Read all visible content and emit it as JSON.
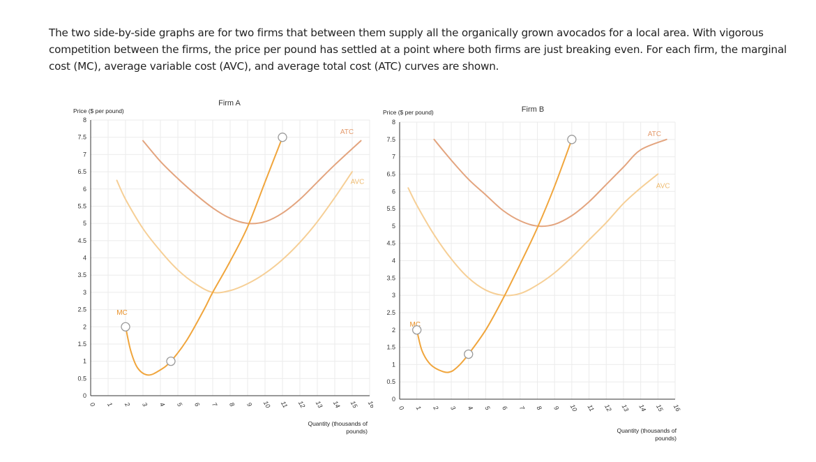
{
  "intro_text": "The two side-by-side graphs are for two firms that between them supply all the organically grown avocados for a local area. With vigorous competition between the firms, the price per pound has settled at a point where both firms are just breaking even. For each firm, the marginal cost (MC), average variable cost (AVC), and average total cost (ATC) curves are shown.",
  "colors": {
    "atc": "#e3a47e",
    "avc": "#f6cf96",
    "mc": "#f0a53c",
    "atc_label": "#e49a6c",
    "avc_label": "#eebb70",
    "mc_label": "#e88f25"
  },
  "chart_data": [
    {
      "type": "line",
      "title": "Firm A",
      "ylabel": "Price ($ per pound)",
      "xlabel": "Quantity (thousands of pounds)",
      "xlim": [
        0,
        16
      ],
      "ylim": [
        0,
        8
      ],
      "x_ticks": [
        "0",
        "1",
        "2",
        "3",
        "4",
        "5",
        "6",
        "7",
        "8",
        "9",
        "10",
        "11",
        "12",
        "13",
        "14",
        "15",
        "16"
      ],
      "y_ticks": [
        "0",
        "0.5",
        "1",
        "1.5",
        "2",
        "2.5",
        "3",
        "3.5",
        "4",
        "4.5",
        "5",
        "5.5",
        "6",
        "6.5",
        "7",
        "7.5",
        "8"
      ],
      "series": [
        {
          "name": "ATC",
          "x": [
            3,
            4,
            5,
            6,
            7,
            8,
            9,
            10,
            11,
            12,
            13,
            14,
            15.5
          ],
          "y": [
            7.4,
            6.8,
            6.3,
            5.85,
            5.45,
            5.15,
            5.0,
            5.05,
            5.3,
            5.7,
            6.2,
            6.7,
            7.4
          ]
        },
        {
          "name": "AVC",
          "x": [
            1.5,
            2,
            3,
            4,
            5,
            6,
            7,
            8,
            9,
            10,
            11,
            12,
            13,
            14,
            15
          ],
          "y": [
            6.25,
            5.7,
            4.85,
            4.2,
            3.65,
            3.25,
            3.0,
            3.05,
            3.25,
            3.55,
            3.95,
            4.45,
            5.05,
            5.75,
            6.5
          ]
        },
        {
          "name": "MC",
          "x": [
            2,
            2.3,
            2.7,
            3.3,
            4,
            4.6,
            5.5,
            6.5,
            7,
            8,
            9,
            10,
            11
          ],
          "y": [
            2.0,
            1.3,
            0.8,
            0.6,
            0.75,
            1.0,
            1.6,
            2.5,
            3.0,
            3.9,
            4.9,
            6.2,
            7.5
          ]
        }
      ],
      "handles": [
        {
          "x": 2,
          "y": 2
        },
        {
          "x": 4.6,
          "y": 1
        },
        {
          "x": 11,
          "y": 7.5
        }
      ],
      "labels": [
        {
          "text": "ATC",
          "x": 14.7,
          "y": 7.6
        },
        {
          "text": "AVC",
          "x": 15.3,
          "y": 6.15
        },
        {
          "text": "MC",
          "x": 1.8,
          "y": 2.35
        }
      ]
    },
    {
      "type": "line",
      "title": "Firm B",
      "ylabel": "Price ($ per pound)",
      "xlabel": "Quantity (thousands of pounds)",
      "xlim": [
        0,
        16
      ],
      "ylim": [
        0,
        8
      ],
      "x_ticks": [
        "0",
        "1",
        "2",
        "3",
        "4",
        "5",
        "6",
        "7",
        "8",
        "9",
        "10",
        "11",
        "12",
        "13",
        "14",
        "15",
        "16"
      ],
      "y_ticks": [
        "0",
        "0.5",
        "1",
        "1.5",
        "2",
        "2.5",
        "3",
        "3.5",
        "4",
        "4.5",
        "5",
        "5.5",
        "6",
        "6.5",
        "7",
        "7.5",
        "8"
      ],
      "series": [
        {
          "name": "ATC",
          "x": [
            2,
            3,
            4,
            5,
            6,
            7,
            8,
            9,
            10,
            11,
            12,
            13,
            14,
            15.5
          ],
          "y": [
            7.5,
            6.9,
            6.35,
            5.9,
            5.45,
            5.15,
            5.0,
            5.05,
            5.3,
            5.7,
            6.2,
            6.7,
            7.2,
            7.5
          ]
        },
        {
          "name": "AVC",
          "x": [
            0.5,
            1,
            2,
            3,
            4,
            5,
            6,
            7,
            8,
            9,
            10,
            11,
            12,
            13,
            14,
            15
          ],
          "y": [
            6.1,
            5.6,
            4.75,
            4.05,
            3.5,
            3.15,
            3.0,
            3.05,
            3.3,
            3.65,
            4.1,
            4.6,
            5.1,
            5.65,
            6.1,
            6.5
          ]
        },
        {
          "name": "MC",
          "x": [
            1,
            1.3,
            1.8,
            2.5,
            3,
            3.5,
            4,
            5,
            6,
            7,
            8,
            9,
            10
          ],
          "y": [
            2.0,
            1.4,
            1.0,
            0.8,
            0.8,
            1.0,
            1.3,
            2.0,
            2.9,
            3.9,
            4.95,
            6.15,
            7.5
          ]
        }
      ],
      "handles": [
        {
          "x": 1,
          "y": 2
        },
        {
          "x": 4,
          "y": 1.3
        },
        {
          "x": 10,
          "y": 7.5
        }
      ],
      "labels": [
        {
          "text": "ATC",
          "x": 14.8,
          "y": 7.6
        },
        {
          "text": "AVC",
          "x": 15.3,
          "y": 6.1
        },
        {
          "text": "MC",
          "x": 0.9,
          "y": 2.1
        }
      ]
    }
  ]
}
